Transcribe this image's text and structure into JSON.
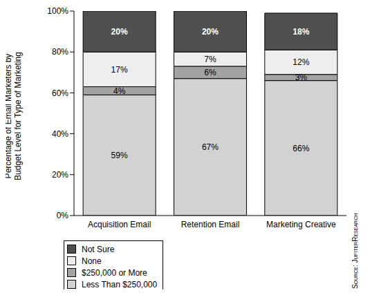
{
  "chart_data": {
    "type": "bar",
    "stacked": true,
    "orientation": "vertical",
    "y_label": "Percentage of Email Marketers by Budget Level for Type of Marketing",
    "annotations": [
      "Source: JupiterResearch"
    ],
    "categories": [
      "Acquisition Email",
      "Retention Email",
      "Marketing Creative"
    ],
    "series": [
      {
        "name": "Less Than $250,000",
        "color": "#d2d2d2",
        "values": [
          59,
          67,
          66
        ],
        "value_labels": [
          "59%",
          "67%",
          "66%"
        ]
      },
      {
        "name": "$250,000 or More",
        "color": "#a3a3a3",
        "values": [
          4,
          6,
          3
        ],
        "value_labels": [
          "4%",
          "6%",
          "3%"
        ]
      },
      {
        "name": "None",
        "color": "#eeeeee",
        "values": [
          17,
          7,
          12
        ],
        "value_labels": [
          "17%",
          "7%",
          "12%"
        ]
      },
      {
        "name": "Not Sure",
        "color": "#4f4f4f",
        "values": [
          20,
          20,
          18
        ],
        "value_labels": [
          "20%",
          "20%",
          "18%"
        ]
      }
    ],
    "ylim": [
      0,
      100
    ],
    "yticks": [
      {
        "value": 0,
        "label": "0%"
      },
      {
        "value": 20,
        "label": "20%"
      },
      {
        "value": 40,
        "label": "40%"
      },
      {
        "value": 60,
        "label": "60%"
      },
      {
        "value": 80,
        "label": "80%"
      },
      {
        "value": 100,
        "label": "100%"
      }
    ],
    "grid": false,
    "data_labels": true,
    "legend": "bottom-left"
  }
}
